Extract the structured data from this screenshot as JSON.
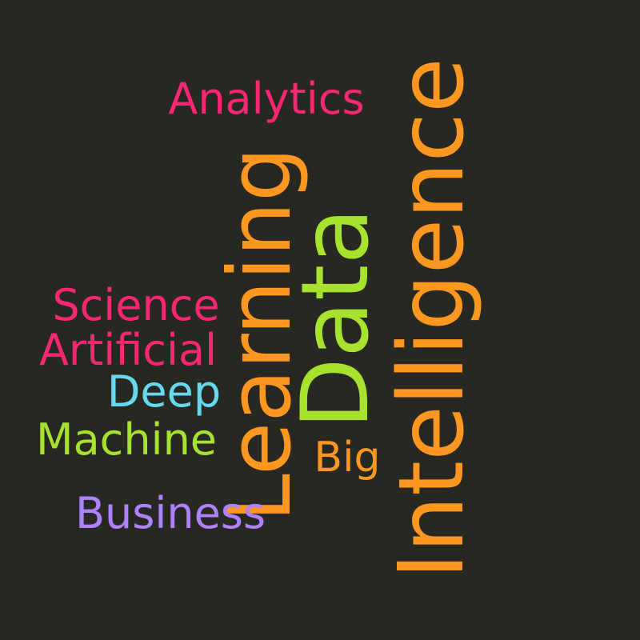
{
  "words": [
    {
      "key": "intelligence",
      "text": "Intelligence",
      "color": "#fd971f",
      "orientation": "vertical"
    },
    {
      "key": "learning",
      "text": "Learning",
      "color": "#fd971f",
      "orientation": "vertical"
    },
    {
      "key": "data",
      "text": "Data",
      "color": "#a6e22e",
      "orientation": "vertical"
    },
    {
      "key": "analytics",
      "text": "Analytics",
      "color": "#f92672",
      "orientation": "horizontal"
    },
    {
      "key": "science",
      "text": "Science",
      "color": "#f92672",
      "orientation": "horizontal"
    },
    {
      "key": "artificial",
      "text": "Artificial",
      "color": "#f92672",
      "orientation": "horizontal"
    },
    {
      "key": "deep",
      "text": "Deep",
      "color": "#66d9ef",
      "orientation": "horizontal"
    },
    {
      "key": "machine",
      "text": "Machine",
      "color": "#a6e22e",
      "orientation": "horizontal"
    },
    {
      "key": "big",
      "text": "Big",
      "color": "#fd971f",
      "orientation": "horizontal"
    },
    {
      "key": "business",
      "text": "Business",
      "color": "#ae81ff",
      "orientation": "horizontal"
    }
  ],
  "background_color": "#272822"
}
